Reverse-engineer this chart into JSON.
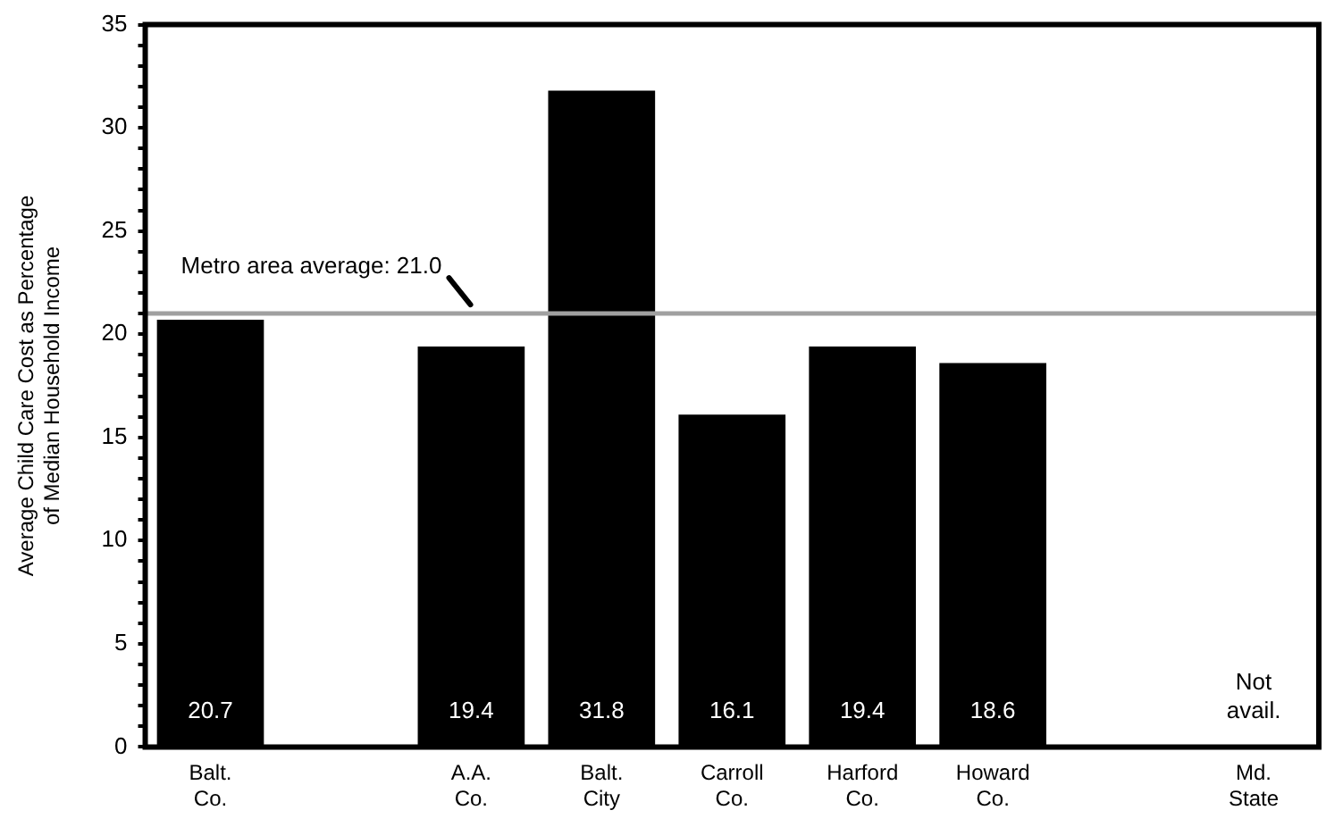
{
  "chart_data": {
    "type": "bar",
    "ylabel": "Average Child Care Cost as Percentage\nof Median Household Income",
    "categories": [
      "Balt. Co.",
      null,
      "A.A. Co.",
      "Balt. City",
      "Carroll Co.",
      "Harford Co.",
      "Howard Co.",
      null,
      "Md. State"
    ],
    "values": [
      20.7,
      null,
      19.4,
      31.8,
      16.1,
      19.4,
      18.6,
      null,
      null
    ],
    "value_labels": [
      "20.7",
      null,
      "19.4",
      "31.8",
      "16.1",
      "19.4",
      "18.6",
      null,
      "Not avail."
    ],
    "color": "#000000",
    "ylim": [
      0,
      35
    ],
    "yticks": [
      0,
      {
        "value": 1,
        "label": null
      },
      {
        "value": 2,
        "label": null
      },
      {
        "value": 3,
        "label": null
      },
      {
        "value": 4,
        "label": null
      },
      5,
      {
        "value": 6,
        "label": null
      },
      {
        "value": 7,
        "label": null
      },
      {
        "value": 8,
        "label": null
      },
      {
        "value": 9,
        "label": null
      },
      10,
      {
        "value": 11,
        "label": null
      },
      {
        "value": 12,
        "label": null
      },
      {
        "value": 13,
        "label": null
      },
      {
        "value": 14,
        "label": null
      },
      15,
      {
        "value": 16,
        "label": null
      },
      {
        "value": 17,
        "label": null
      },
      {
        "value": 18,
        "label": null
      },
      {
        "value": 19,
        "label": null
      },
      20,
      {
        "value": 21,
        "label": null
      },
      {
        "value": 22,
        "label": null
      },
      {
        "value": 23,
        "label": null
      },
      {
        "value": 24,
        "label": null
      },
      25,
      {
        "value": 26,
        "label": null
      },
      {
        "value": 27,
        "label": null
      },
      {
        "value": 28,
        "label": null
      },
      {
        "value": 29,
        "label": null
      },
      30,
      {
        "value": 31,
        "label": null
      },
      {
        "value": 32,
        "label": null
      },
      {
        "value": 33,
        "label": null
      },
      {
        "value": 34,
        "label": null
      },
      35
    ],
    "ref_lines": [
      {
        "axis": "y",
        "value": 21.0,
        "label": "Metro area average: 21.0",
        "color": "#a0a0a0"
      }
    ],
    "grid": false,
    "legend": false
  }
}
